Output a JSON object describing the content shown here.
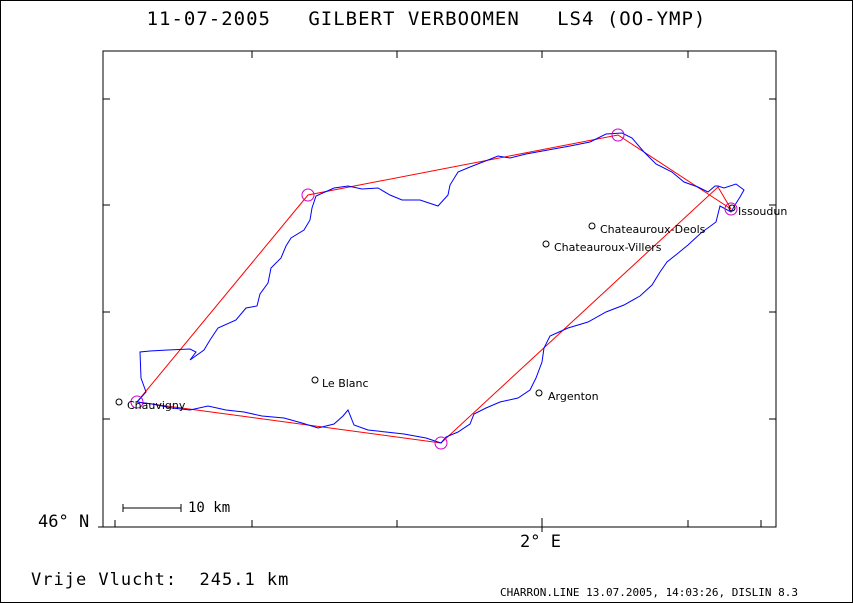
{
  "header": {
    "title": "11-07-2005   GILBERT VERBOOMEN   LS4 (OO-YMP)"
  },
  "axes": {
    "latitude_label": "46° N",
    "longitude_label": "2° E"
  },
  "scale_bar": {
    "label": "10 km"
  },
  "distance": {
    "text": "Vrije Vlucht:  245.1 km",
    "value_km": 245.1
  },
  "footer": {
    "text": "CHARRON.LINE 13.07.2005, 14:03:26, DISLIN 8.3"
  },
  "towns": [
    {
      "id": "issoudun",
      "name": "Issoudun"
    },
    {
      "id": "chateauroux-deols",
      "name": "Chateauroux-Deols"
    },
    {
      "id": "chateauroux-villers",
      "name": "Chateauroux-Villers"
    },
    {
      "id": "le-blanc",
      "name": "Le Blanc"
    },
    {
      "id": "chauvigny",
      "name": "Chauvigny"
    },
    {
      "id": "argenton",
      "name": "Argenton"
    }
  ],
  "colors": {
    "track": "#0000ff",
    "task": "#ff0000",
    "turnpoint": "#cc00cc",
    "frame": "#000000"
  }
}
